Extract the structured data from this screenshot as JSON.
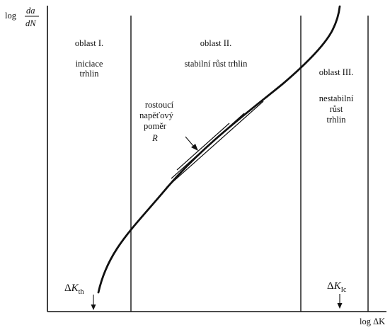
{
  "y_axis": {
    "log": "log",
    "frac_num": "da",
    "frac_den": "dN"
  },
  "x_axis": {
    "label": "log ΔK"
  },
  "regions": [
    {
      "title": "oblast I.",
      "lines": [
        "iniciace",
        "trhlin"
      ]
    },
    {
      "title": "oblast II.",
      "lines": [
        "stabilní růst trhlin"
      ]
    },
    {
      "title": "oblast III.",
      "lines": [
        "nestabilní",
        "růst",
        "trhlin"
      ]
    }
  ],
  "ratio_note": {
    "lines": [
      "rostoucí",
      "napěťový",
      "poměr"
    ],
    "symbol": "R"
  },
  "thresholds": {
    "th": {
      "delta": "Δ",
      "k": "K",
      "sub": "th"
    },
    "ic": {
      "delta": "Δ",
      "k": "K",
      "sub": "Ic"
    }
  }
}
